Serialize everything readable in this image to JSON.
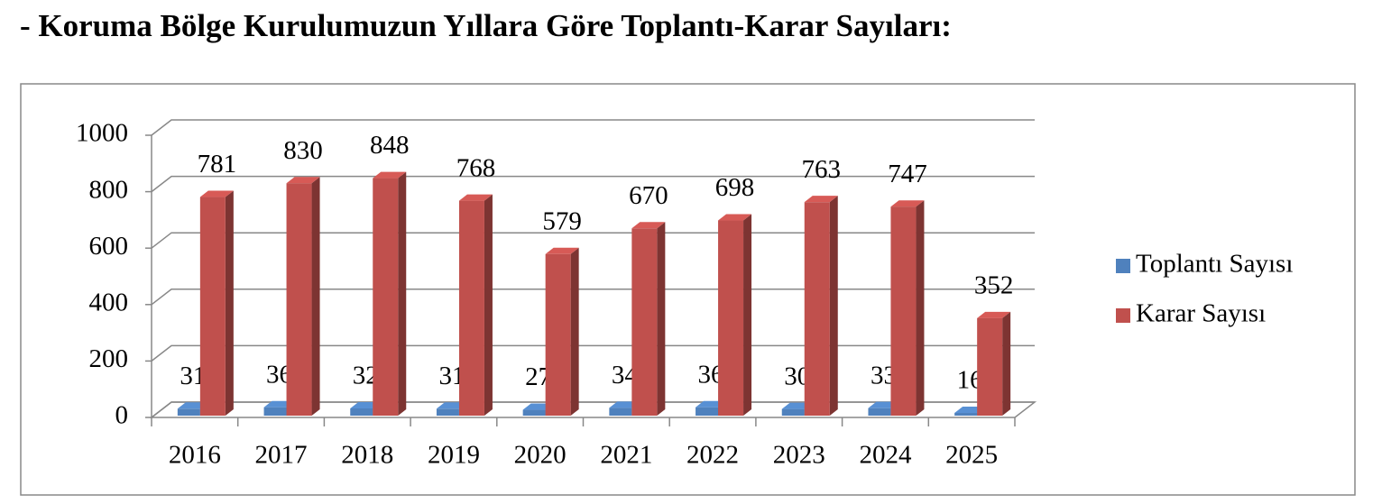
{
  "chart_data": {
    "type": "bar",
    "title": "- Koruma Bölge Kurulumuzun Yıllara Göre Toplantı-Karar Sayıları:",
    "categories": [
      "2016",
      "2017",
      "2018",
      "2019",
      "2020",
      "2021",
      "2022",
      "2023",
      "2024",
      "2025"
    ],
    "series": [
      {
        "name": "Toplantı Sayısı",
        "color": "#4f81bd",
        "values": [
          31,
          36,
          32,
          31,
          27,
          34,
          36,
          30,
          33,
          16
        ]
      },
      {
        "name": "Karar Sayısı",
        "color": "#c0504d",
        "values": [
          781,
          830,
          848,
          768,
          579,
          670,
          698,
          763,
          747,
          352
        ]
      }
    ],
    "ylim": [
      0,
      1000
    ],
    "yticks": [
      0,
      200,
      400,
      600,
      800,
      1000
    ],
    "grid": true,
    "legend": "right"
  }
}
